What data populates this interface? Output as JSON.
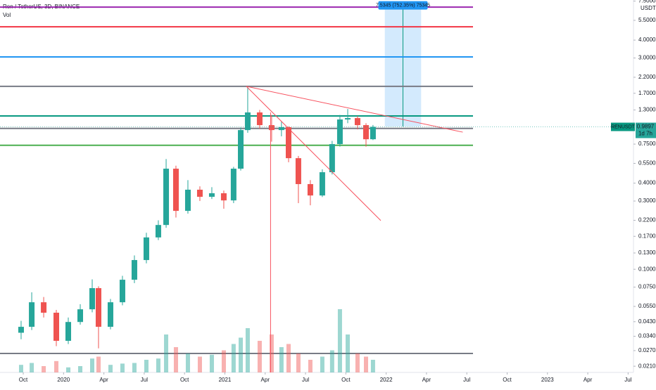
{
  "chart_data": {
    "type": "candlestick",
    "title": "Ren / TetherUS, 3D, BINANCE",
    "volume_label": "Vol",
    "currency": "USDT",
    "symbol": "RENUSDT",
    "last_price": 0.9897,
    "countdown": "1d 7h",
    "log_scale": true,
    "up_color": "#26a69a",
    "down_color": "#ef5350",
    "xlim": [
      -1.73,
      45.4
    ],
    "xticks": [
      {
        "value": 0,
        "label": "Oct"
      },
      {
        "value": 3,
        "label": "2020"
      },
      {
        "value": 6,
        "label": "Apr"
      },
      {
        "value": 9,
        "label": "Jul"
      },
      {
        "value": 12,
        "label": "Oct"
      },
      {
        "value": 15,
        "label": "2021"
      },
      {
        "value": 18,
        "label": "Apr"
      },
      {
        "value": 21,
        "label": "Jul"
      },
      {
        "value": 24,
        "label": "Oct"
      },
      {
        "value": 27,
        "label": "2022"
      },
      {
        "value": 30,
        "label": "Apr"
      },
      {
        "value": 33,
        "label": "Jul"
      },
      {
        "value": 36,
        "label": "Oct"
      },
      {
        "value": 39,
        "label": "2023"
      },
      {
        "value": 42,
        "label": "Apr"
      },
      {
        "value": 45,
        "label": "Jul"
      }
    ],
    "ylim": [
      0.019,
      7.63
    ],
    "yticks": [
      {
        "value": 0.021,
        "label": "0.0210"
      },
      {
        "value": 0.027,
        "label": "0.0270"
      },
      {
        "value": 0.034,
        "label": "0.0340"
      },
      {
        "value": 0.043,
        "label": "0.0430"
      },
      {
        "value": 0.055,
        "label": "0.0550"
      },
      {
        "value": 0.075,
        "label": "0.0750"
      },
      {
        "value": 0.1,
        "label": "0.1000"
      },
      {
        "value": 0.13,
        "label": "0.1300"
      },
      {
        "value": 0.17,
        "label": "0.1700"
      },
      {
        "value": 0.22,
        "label": "0.2200"
      },
      {
        "value": 0.3,
        "label": "0.3000"
      },
      {
        "value": 0.4,
        "label": "0.4000"
      },
      {
        "value": 0.55,
        "label": "0.5500"
      },
      {
        "value": 0.75,
        "label": "0.7500"
      },
      {
        "value": 1.3,
        "label": "1.3000"
      },
      {
        "value": 1.7,
        "label": "1.7000"
      },
      {
        "value": 2.2,
        "label": "2.2000"
      },
      {
        "value": 3,
        "label": "3.0000"
      },
      {
        "value": 4,
        "label": "4.0000"
      },
      {
        "value": 5.5,
        "label": "5.5000"
      },
      {
        "value": 7.5,
        "label": "7.5000"
      }
    ],
    "x": [
      -0.16,
      0.63,
      1.52,
      2.46,
      3.35,
      4.24,
      5.13,
      5.6,
      6.49,
      7.38,
      8.27,
      9.16,
      10.05,
      10.63,
      11.36,
      12.25,
      13.14,
      14.03,
      14.92,
      15.65,
      16.18,
      16.7,
      17.59,
      18.48,
      19.21,
      19.74,
      20.47,
      21.36,
      22.25,
      22.98,
      23.56,
      24.14,
      24.87,
      25.5,
      26.02
    ],
    "open": [
      0.036,
      0.0396,
      0.0588,
      0.0497,
      0.0316,
      0.0428,
      0.0525,
      0.0738,
      0.0396,
      0.0588,
      0.0845,
      0.116,
      0.167,
      0.204,
      0.505,
      0.256,
      0.36,
      0.321,
      0.34,
      0.303,
      0.505,
      0.94,
      1.249,
      1.018,
      0.94,
      0.985,
      0.598,
      0.394,
      0.328,
      0.477,
      0.75,
      1.115,
      1.14,
      1.018,
      0.811
    ],
    "high": [
      0.0436,
      0.069,
      0.064,
      0.052,
      0.046,
      0.057,
      0.085,
      0.076,
      0.062,
      0.09,
      0.125,
      0.18,
      0.22,
      0.59,
      0.53,
      0.42,
      0.38,
      0.375,
      0.355,
      0.52,
      0.98,
      1.9,
      1.3,
      1.2,
      1.08,
      1.0,
      0.62,
      0.42,
      0.5,
      0.79,
      1.2,
      1.32,
      1.18,
      1.05,
      1.02
    ],
    "low": [
      0.0324,
      0.0376,
      0.046,
      0.029,
      0.03,
      0.041,
      0.05,
      0.028,
      0.038,
      0.056,
      0.08,
      0.11,
      0.16,
      0.195,
      0.23,
      0.245,
      0.3,
      0.31,
      0.265,
      0.29,
      0.49,
      0.9,
      0.96,
      0.78,
      0.85,
      0.56,
      0.29,
      0.28,
      0.32,
      0.46,
      0.72,
      1.05,
      0.95,
      0.72,
      0.8
    ],
    "close": [
      0.0396,
      0.0588,
      0.0497,
      0.0316,
      0.0428,
      0.0525,
      0.0738,
      0.0396,
      0.0588,
      0.0845,
      0.116,
      0.167,
      0.204,
      0.505,
      0.256,
      0.36,
      0.321,
      0.34,
      0.303,
      0.505,
      0.94,
      1.249,
      1.018,
      0.94,
      0.985,
      0.598,
      0.394,
      0.328,
      0.477,
      0.75,
      1.115,
      1.14,
      1.018,
      0.811,
      0.9897
    ],
    "volume": [
      12,
      15,
      10,
      18,
      8,
      10,
      22,
      25,
      12,
      14,
      15,
      20,
      22,
      60,
      40,
      30,
      25,
      28,
      35,
      45,
      55,
      70,
      50,
      60,
      40,
      45,
      30,
      20,
      25,
      35,
      100,
      60,
      30,
      25,
      20
    ],
    "levels": [
      {
        "value": 6.8,
        "color": "#9c27b0"
      },
      {
        "value": 4.96,
        "color": "#f23645"
      },
      {
        "value": 3.05,
        "color": "#2196f3"
      },
      {
        "value": 1.9,
        "color": "#787b86"
      },
      {
        "value": 1.18,
        "color": "#089981"
      },
      {
        "value": 0.966,
        "color": "#787b86"
      },
      {
        "value": 0.736,
        "color": "#4caf50"
      },
      {
        "value": 0.0258,
        "color": "#787b86"
      }
    ],
    "trendlines": [
      {
        "x": [
          16.6,
          32.7
        ],
        "y": [
          1.9,
          0.909
        ],
        "color": "#f7525f"
      },
      {
        "x": [
          16.6,
          26.6
        ],
        "y": [
          1.9,
          0.219
        ],
        "color": "#f7525f"
      },
      {
        "x": [
          18.4,
          18.4
        ],
        "y": [
          1.25,
          0.019
        ],
        "color": "#f7525f"
      }
    ],
    "projection": {
      "x": [
        26.9,
        29.6
      ],
      "y": [
        0.995,
        7.0
      ],
      "color": "#2196f3",
      "label": "7.5345 (752.35%) 75345"
    }
  }
}
